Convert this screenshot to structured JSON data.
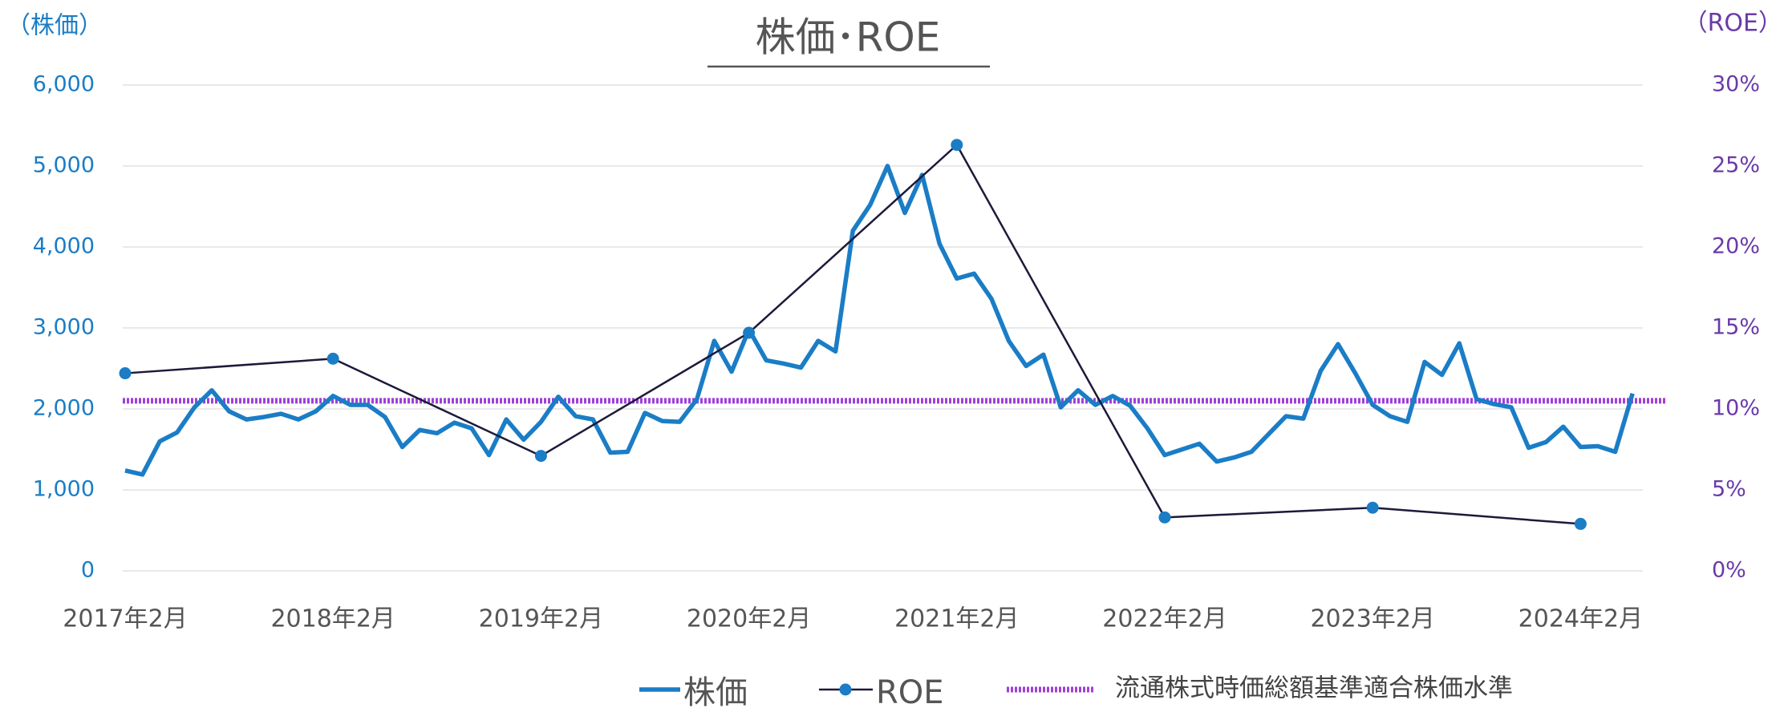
{
  "chart_data": {
    "type": "line",
    "title": "株価･ROE",
    "y_axis_label": "（株価）",
    "y2_axis_label": "（ROE）",
    "categories": [
      "2017年2月",
      null,
      null,
      null,
      null,
      null,
      null,
      null,
      null,
      null,
      null,
      null,
      "2018年2月",
      null,
      null,
      null,
      null,
      null,
      null,
      null,
      null,
      null,
      null,
      null,
      "2019年2月",
      null,
      null,
      null,
      null,
      null,
      null,
      null,
      null,
      null,
      null,
      null,
      "2020年2月",
      null,
      null,
      null,
      null,
      null,
      null,
      null,
      null,
      null,
      null,
      null,
      "2021年2月",
      null,
      null,
      null,
      null,
      null,
      null,
      null,
      null,
      null,
      null,
      null,
      "2022年2月",
      null,
      null,
      null,
      null,
      null,
      null,
      null,
      null,
      null,
      null,
      null,
      "2023年2月",
      null,
      null,
      null,
      null,
      null,
      null,
      null,
      null,
      null,
      null,
      null,
      "2024年2月",
      null,
      null,
      null
    ],
    "series": [
      {
        "name": "株価",
        "color": "#1a7dc6",
        "values": [
          1240,
          1190,
          1600,
          1710,
          2020,
          2230,
          1970,
          1870,
          1900,
          1940,
          1870,
          1970,
          2160,
          2050,
          2050,
          1900,
          1530,
          1740,
          1700,
          1830,
          1760,
          1430,
          1870,
          1620,
          1840,
          2150,
          1910,
          1870,
          1460,
          1470,
          1950,
          1850,
          1840,
          2120,
          2840,
          2460,
          2980,
          2600,
          2560,
          2510,
          2840,
          2710,
          4200,
          4520,
          5000,
          4420,
          4890,
          4040,
          3610,
          3670,
          3360,
          2840,
          2530,
          2670,
          2020,
          2230,
          2050,
          2160,
          2040,
          1760,
          1430,
          1500,
          1570,
          1350,
          1400,
          1470,
          1690,
          1910,
          1880,
          2470,
          2800,
          2440,
          2050,
          1910,
          1840,
          2580,
          2420,
          2810,
          2120,
          2060,
          2020,
          1520,
          1590,
          1780,
          1530,
          1540,
          1470,
          2190
        ]
      },
      {
        "name": "ROE",
        "color": "#1c1a3a",
        "marker_color": "#1a7dc6",
        "axis": "y2",
        "x": [
          "2017年2月",
          "2018年2月",
          "2019年2月",
          "2020年2月",
          "2021年2月",
          "2022年2月",
          "2023年2月",
          "2024年2月"
        ],
        "values": [
          12.2,
          13.1,
          7.1,
          14.7,
          26.3,
          3.3,
          3.9,
          2.9
        ]
      }
    ],
    "reference_lines": [
      {
        "name": "流通株式時価総額基準適合株価水準",
        "color": "#a040d8",
        "value": 2100
      }
    ],
    "ylim": [
      0,
      6000
    ],
    "yticks": [
      0,
      {
        "value": 1000,
        "label": "1,000"
      },
      {
        "value": 2000,
        "label": "2,000"
      },
      {
        "value": 3000,
        "label": "3,000"
      },
      {
        "value": 4000,
        "label": "4,000"
      },
      {
        "value": 5000,
        "label": "5,000"
      },
      {
        "value": 6000,
        "label": "6,000"
      }
    ],
    "y2lim": [
      0,
      30
    ],
    "y2ticks": [
      {
        "value": 0,
        "label": "0%"
      },
      {
        "value": 5,
        "label": "5%"
      },
      {
        "value": 10,
        "label": "10%"
      },
      {
        "value": 15,
        "label": "15%"
      },
      {
        "value": 20,
        "label": "20%"
      },
      {
        "value": 25,
        "label": "25%"
      },
      {
        "value": 30,
        "label": "30%"
      }
    ],
    "grid": true,
    "legend": "bottom"
  }
}
